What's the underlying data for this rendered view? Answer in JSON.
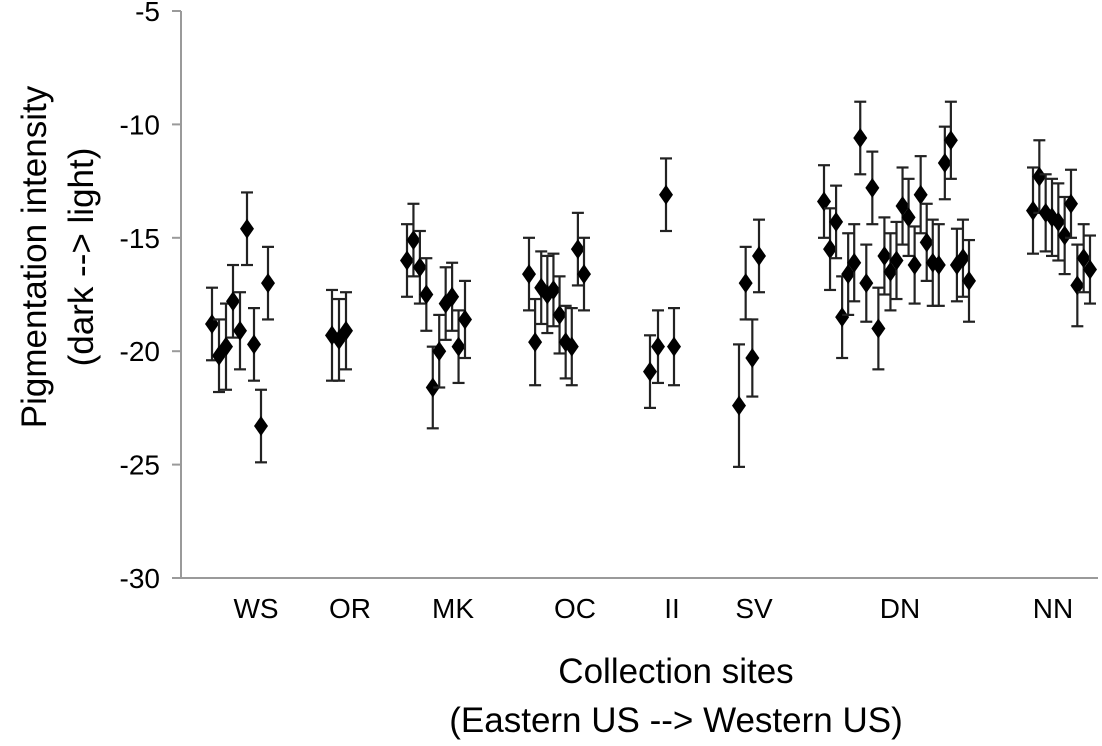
{
  "chart_data": {
    "type": "scatter",
    "xlabel": [
      "Collection sites",
      "(Eastern US --> Western US)"
    ],
    "ylabel": [
      "Pigmentation intensity",
      "(dark --> light)"
    ],
    "ylim": [
      -30,
      -5
    ],
    "yticks": [
      -5,
      -10,
      -15,
      -20,
      -25,
      -30
    ],
    "categories": [
      "WS",
      "OR",
      "MK",
      "OC",
      "II",
      "SV",
      "DN",
      "NN"
    ],
    "grid": false,
    "error_bars": true,
    "points": [
      {
        "site": "WS",
        "y": -18.8,
        "err": 1.6
      },
      {
        "site": "WS",
        "y": -20.2,
        "err": 1.6
      },
      {
        "site": "WS",
        "y": -19.8,
        "err": 1.9
      },
      {
        "site": "WS",
        "y": -17.8,
        "err": 1.6
      },
      {
        "site": "WS",
        "y": -19.1,
        "err": 1.7
      },
      {
        "site": "WS",
        "y": -14.6,
        "err": 1.6
      },
      {
        "site": "WS",
        "y": -19.7,
        "err": 1.6
      },
      {
        "site": "WS",
        "y": -23.3,
        "err": 1.6
      },
      {
        "site": "WS",
        "y": -17.0,
        "err": 1.6
      },
      {
        "site": "OR",
        "y": -19.3,
        "err": 2.0
      },
      {
        "site": "OR",
        "y": -19.5,
        "err": 1.8
      },
      {
        "site": "OR",
        "y": -19.1,
        "err": 1.7
      },
      {
        "site": "MK",
        "y": -16.0,
        "err": 1.6
      },
      {
        "site": "MK",
        "y": -15.1,
        "err": 1.6
      },
      {
        "site": "MK",
        "y": -16.3,
        "err": 1.6
      },
      {
        "site": "MK",
        "y": -17.5,
        "err": 1.6
      },
      {
        "site": "MK",
        "y": -21.6,
        "err": 1.8
      },
      {
        "site": "MK",
        "y": -20.0,
        "err": 1.6
      },
      {
        "site": "MK",
        "y": -17.9,
        "err": 1.6
      },
      {
        "site": "MK",
        "y": -17.6,
        "err": 1.5
      },
      {
        "site": "MK",
        "y": -19.8,
        "err": 1.6
      },
      {
        "site": "MK",
        "y": -18.6,
        "err": 1.7
      },
      {
        "site": "OC",
        "y": -16.6,
        "err": 1.6
      },
      {
        "site": "OC",
        "y": -19.6,
        "err": 1.9
      },
      {
        "site": "OC",
        "y": -17.2,
        "err": 1.6
      },
      {
        "site": "OC",
        "y": -17.5,
        "err": 1.7
      },
      {
        "site": "OC",
        "y": -17.3,
        "err": 1.6
      },
      {
        "site": "OC",
        "y": -18.4,
        "err": 1.7
      },
      {
        "site": "OC",
        "y": -19.6,
        "err": 1.6
      },
      {
        "site": "OC",
        "y": -19.8,
        "err": 1.7
      },
      {
        "site": "OC",
        "y": -15.5,
        "err": 1.6
      },
      {
        "site": "OC",
        "y": -16.6,
        "err": 1.6
      },
      {
        "site": "II",
        "y": -20.9,
        "err": 1.6
      },
      {
        "site": "II",
        "y": -19.8,
        "err": 1.6
      },
      {
        "site": "II",
        "y": -13.1,
        "err": 1.6
      },
      {
        "site": "II",
        "y": -19.8,
        "err": 1.7
      },
      {
        "site": "SV",
        "y": -22.4,
        "err": 2.7
      },
      {
        "site": "SV",
        "y": -17.0,
        "err": 1.6
      },
      {
        "site": "SV",
        "y": -20.3,
        "err": 1.7
      },
      {
        "site": "SV",
        "y": -15.8,
        "err": 1.6
      },
      {
        "site": "DN",
        "y": -13.4,
        "err": 1.6
      },
      {
        "site": "DN",
        "y": -15.5,
        "err": 1.8
      },
      {
        "site": "DN",
        "y": -14.3,
        "err": 1.6
      },
      {
        "site": "DN",
        "y": -18.5,
        "err": 1.8
      },
      {
        "site": "DN",
        "y": -16.6,
        "err": 1.8
      },
      {
        "site": "DN",
        "y": -16.1,
        "err": 1.7
      },
      {
        "site": "DN",
        "y": -10.6,
        "err": 1.6
      },
      {
        "site": "DN",
        "y": -17.0,
        "err": 1.7
      },
      {
        "site": "DN",
        "y": -12.8,
        "err": 1.6
      },
      {
        "site": "DN",
        "y": -19.0,
        "err": 1.8
      },
      {
        "site": "DN",
        "y": -15.8,
        "err": 1.7
      },
      {
        "site": "DN",
        "y": -16.5,
        "err": 1.7
      },
      {
        "site": "DN",
        "y": -16.0,
        "err": 1.7
      },
      {
        "site": "DN",
        "y": -13.6,
        "err": 1.7
      },
      {
        "site": "DN",
        "y": -14.1,
        "err": 1.7
      },
      {
        "site": "DN",
        "y": -16.2,
        "err": 1.7
      },
      {
        "site": "DN",
        "y": -13.1,
        "err": 1.7
      },
      {
        "site": "DN",
        "y": -15.2,
        "err": 1.7
      },
      {
        "site": "DN",
        "y": -16.1,
        "err": 1.9
      },
      {
        "site": "DN",
        "y": -16.2,
        "err": 1.8
      },
      {
        "site": "DN",
        "y": -11.7,
        "err": 1.6
      },
      {
        "site": "DN",
        "y": -10.7,
        "err": 1.7
      },
      {
        "site": "DN",
        "y": -16.2,
        "err": 1.6
      },
      {
        "site": "DN",
        "y": -15.9,
        "err": 1.7
      },
      {
        "site": "DN",
        "y": -16.9,
        "err": 1.8
      },
      {
        "site": "NN",
        "y": -13.8,
        "err": 1.9
      },
      {
        "site": "NN",
        "y": -12.3,
        "err": 1.6
      },
      {
        "site": "NN",
        "y": -13.9,
        "err": 1.7
      },
      {
        "site": "NN",
        "y": -14.1,
        "err": 1.7
      },
      {
        "site": "NN",
        "y": -14.3,
        "err": 1.7
      },
      {
        "site": "NN",
        "y": -14.9,
        "err": 1.7
      },
      {
        "site": "NN",
        "y": -13.5,
        "err": 1.5
      },
      {
        "site": "NN",
        "y": -17.1,
        "err": 1.8
      },
      {
        "site": "NN",
        "y": -15.9,
        "err": 1.5
      },
      {
        "site": "NN",
        "y": -16.4,
        "err": 1.5
      }
    ]
  }
}
